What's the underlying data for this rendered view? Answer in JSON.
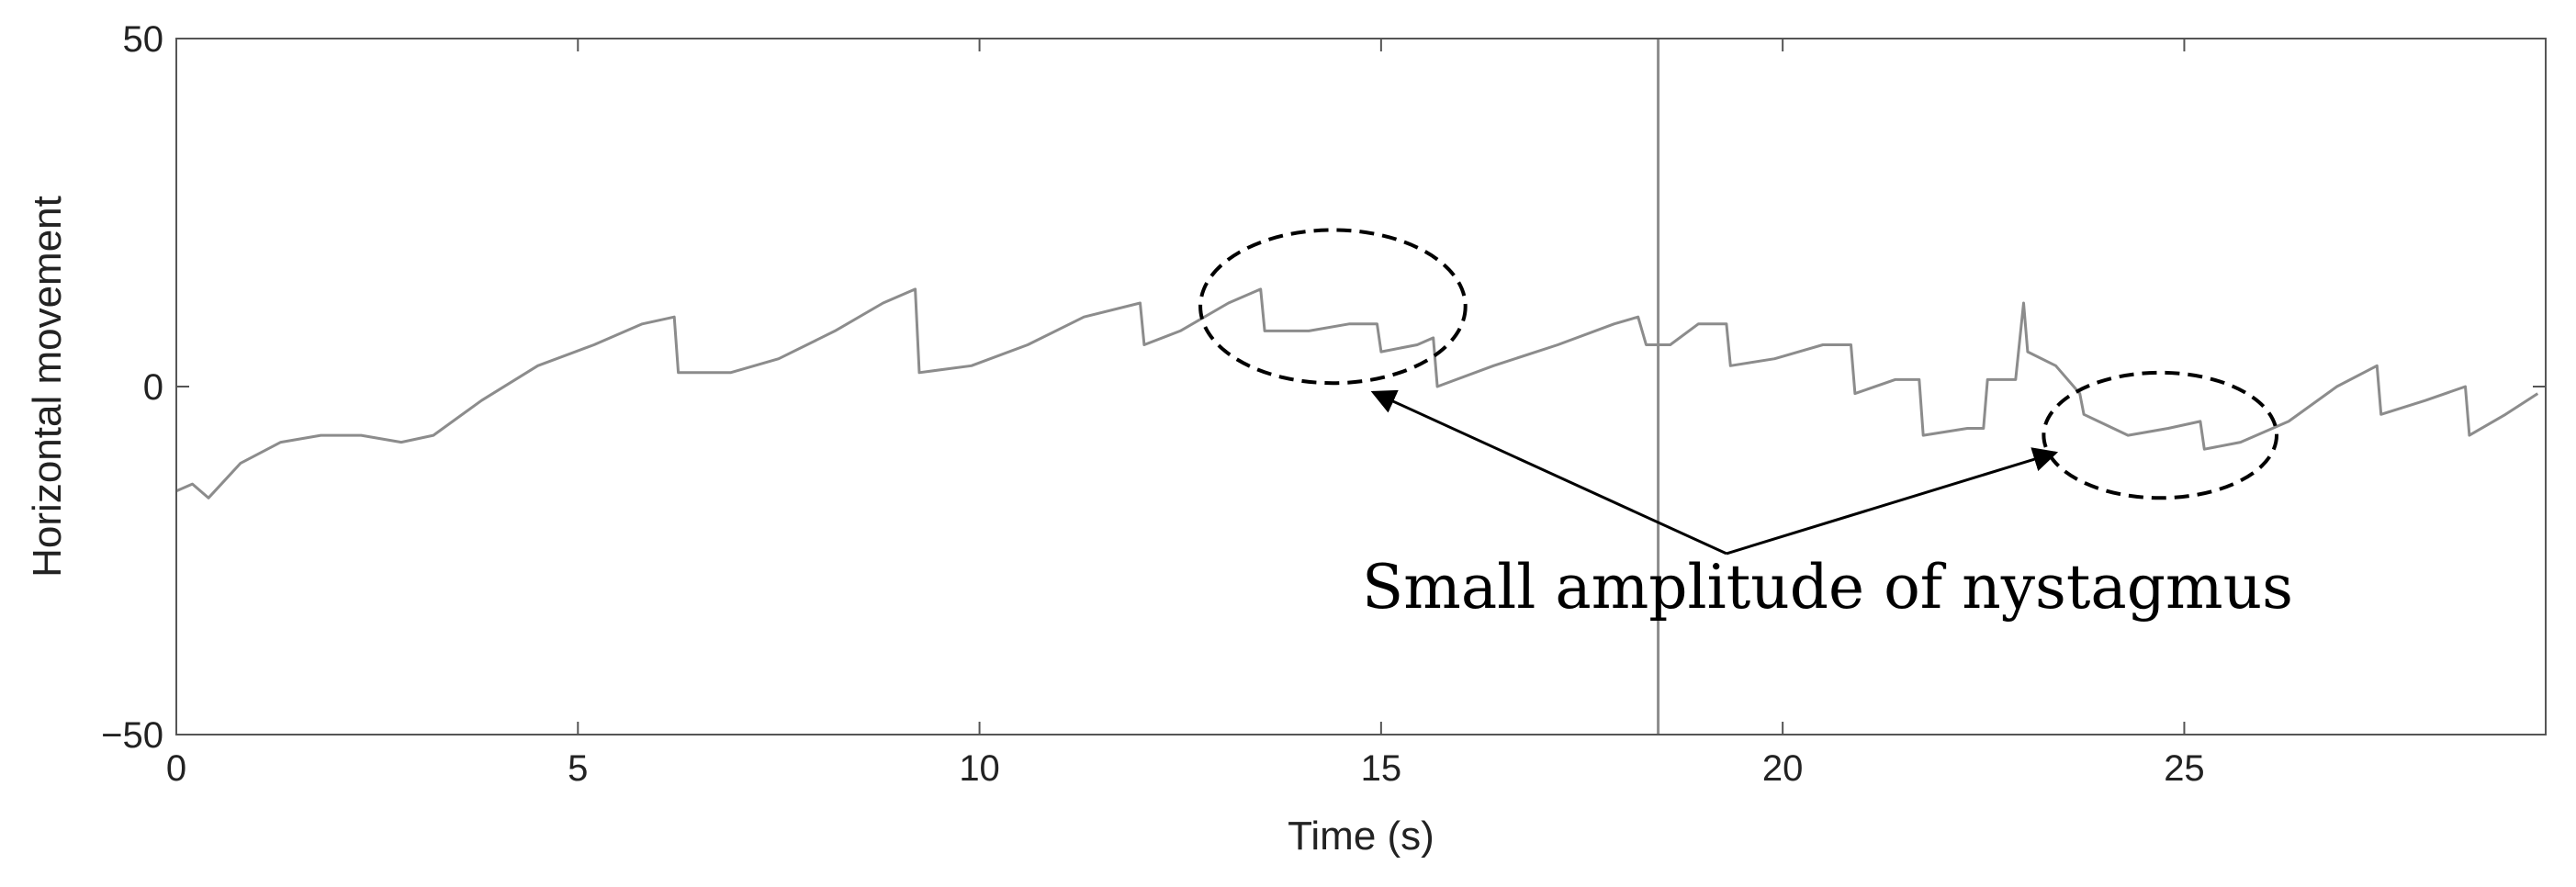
{
  "chart_data": {
    "type": "line",
    "title": "",
    "xlabel": "Time (s)",
    "ylabel": "Horizontal movement",
    "xlim": [
      0,
      29.5
    ],
    "ylim": [
      -50,
      50
    ],
    "xticks": [
      0,
      5,
      10,
      15,
      20,
      25
    ],
    "yticks": [
      -50,
      0,
      50
    ],
    "grid": false,
    "legend": "none",
    "colors": {
      "trace": "#8c8c8c",
      "axes": "#555555",
      "marker": "#8c8c8c",
      "annotation": "#000000"
    },
    "series": [
      {
        "values_x": [
          0,
          0.2,
          0.4,
          0.8,
          1.3,
          1.8,
          2.3,
          2.8,
          3.2,
          3.8,
          4.5,
          5.2,
          5.8,
          6.2,
          6.25,
          6.9,
          7.5,
          8.2,
          8.8,
          9.2,
          9.25,
          9.9,
          10.6,
          11.3,
          12.0,
          12.05,
          12.5,
          13.1,
          13.5,
          13.55,
          14.1,
          14.6,
          14.95,
          15.0,
          15.45,
          15.65,
          15.7,
          16.4,
          17.2,
          17.9,
          18.2,
          18.3,
          18.6,
          18.95,
          19.3,
          19.35,
          19.9,
          20.5,
          20.85,
          20.9,
          21.4,
          21.7,
          21.75,
          22.3,
          22.5,
          22.55,
          22.9,
          23.0,
          23.05,
          23.4,
          23.7,
          23.75,
          24.3,
          24.8,
          25.2,
          25.25,
          25.7,
          26.3,
          26.9,
          27.4,
          27.45,
          28.0,
          28.5,
          28.55,
          29.0,
          29.4
        ],
        "values_y": [
          -15,
          -14,
          -16,
          -11,
          -8,
          -7,
          -7,
          -8,
          -7,
          -2,
          3,
          6,
          9,
          10,
          2,
          2,
          4,
          8,
          12,
          14,
          2,
          3,
          6,
          10,
          12,
          6,
          8,
          12,
          14,
          8,
          8,
          9,
          9,
          5,
          6,
          7,
          0,
          3,
          6,
          9,
          10,
          6,
          6,
          9,
          9,
          3,
          4,
          6,
          6,
          -1,
          1,
          1,
          -7,
          -6,
          -6,
          1,
          1,
          12,
          5,
          3,
          -1,
          -4,
          -7,
          -6,
          -5,
          -9,
          -8,
          -5,
          0,
          3,
          -4,
          -2,
          0,
          -7,
          -4,
          -1
        ]
      }
    ],
    "marker_x": 18.45,
    "annotation": {
      "text": "Small amplitude of nystagmus",
      "ellipses": [
        {
          "cx": 14.4,
          "cy": 11.5,
          "rx": 1.65,
          "ry": 11
        },
        {
          "cx": 24.7,
          "cy": -7,
          "rx": 1.45,
          "ry": 9
        }
      ],
      "arrow_origin": [
        19.3,
        -24
      ],
      "arrow_targets": [
        [
          14.9,
          -0.8
        ],
        [
          23.4,
          -9.5
        ]
      ]
    }
  }
}
